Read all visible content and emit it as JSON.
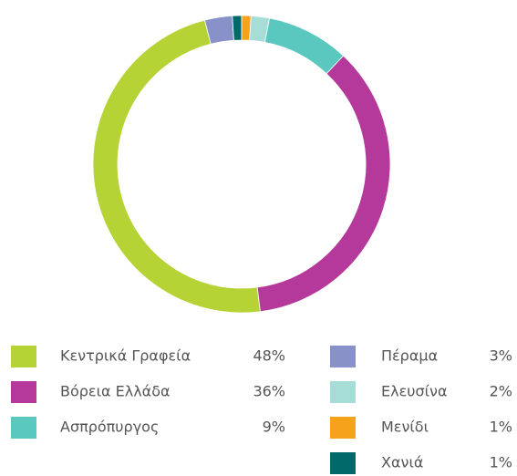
{
  "chart_data": {
    "type": "donut",
    "series": [
      {
        "name": "Κεντρικά Γραφεία",
        "color": "#b5d334"
      },
      {
        "name": "Βόρεια Ελλάδα",
        "color": "#b5399a"
      },
      {
        "name": "Ασπρόπυργος",
        "color": "#5bc8c0"
      },
      {
        "name": "Πέραμα",
        "color": "#8892c9"
      },
      {
        "name": "Ελευσίνα",
        "color": "#a6ddd6"
      },
      {
        "name": "Μενίδι",
        "color": "#f7a21b"
      },
      {
        "name": "Χανιά",
        "color": "#006a6a"
      }
    ],
    "values": [
      48,
      36,
      9,
      3,
      2,
      1,
      1
    ],
    "value_labels": [
      "48%",
      "36%",
      "9%",
      "3%",
      "2%",
      "1%",
      "1%"
    ],
    "legend": "bottom"
  }
}
